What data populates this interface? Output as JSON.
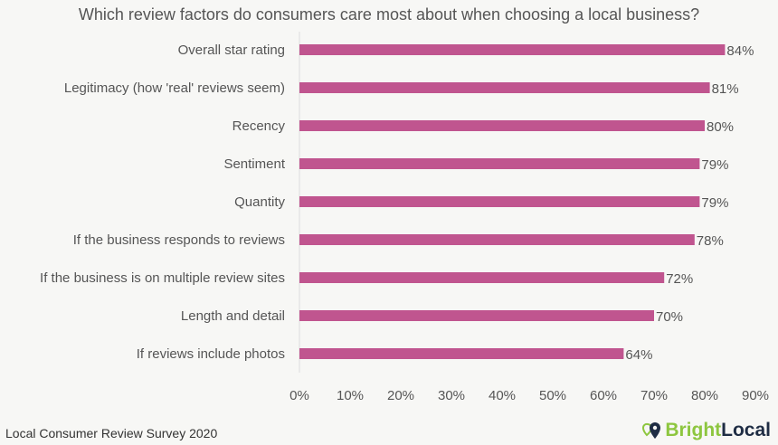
{
  "chart_data": {
    "type": "bar",
    "orientation": "horizontal",
    "title": "Which review factors do consumers care most about when choosing a local business?",
    "categories": [
      "Overall star rating",
      "Legitimacy (how 'real' reviews seem)",
      "Recency",
      "Sentiment",
      "Quantity",
      "If the business responds to reviews",
      "If the business is on multiple review sites",
      "Length and detail",
      "If reviews include photos"
    ],
    "values": [
      84,
      81,
      80,
      79,
      79,
      78,
      72,
      70,
      64
    ],
    "value_labels": [
      "84%",
      "81%",
      "80%",
      "79%",
      "79%",
      "78%",
      "72%",
      "70%",
      "64%"
    ],
    "xlim": [
      0,
      90
    ],
    "xticks": [
      "0%",
      "10%",
      "20%",
      "30%",
      "40%",
      "50%",
      "60%",
      "70%",
      "80%",
      "90%"
    ],
    "bar_color": "#c0558f",
    "grid": false
  },
  "footer": {
    "source": "Local Consumer Review Survey 2020",
    "logo_bright": "Bright",
    "logo_local": "Local"
  }
}
